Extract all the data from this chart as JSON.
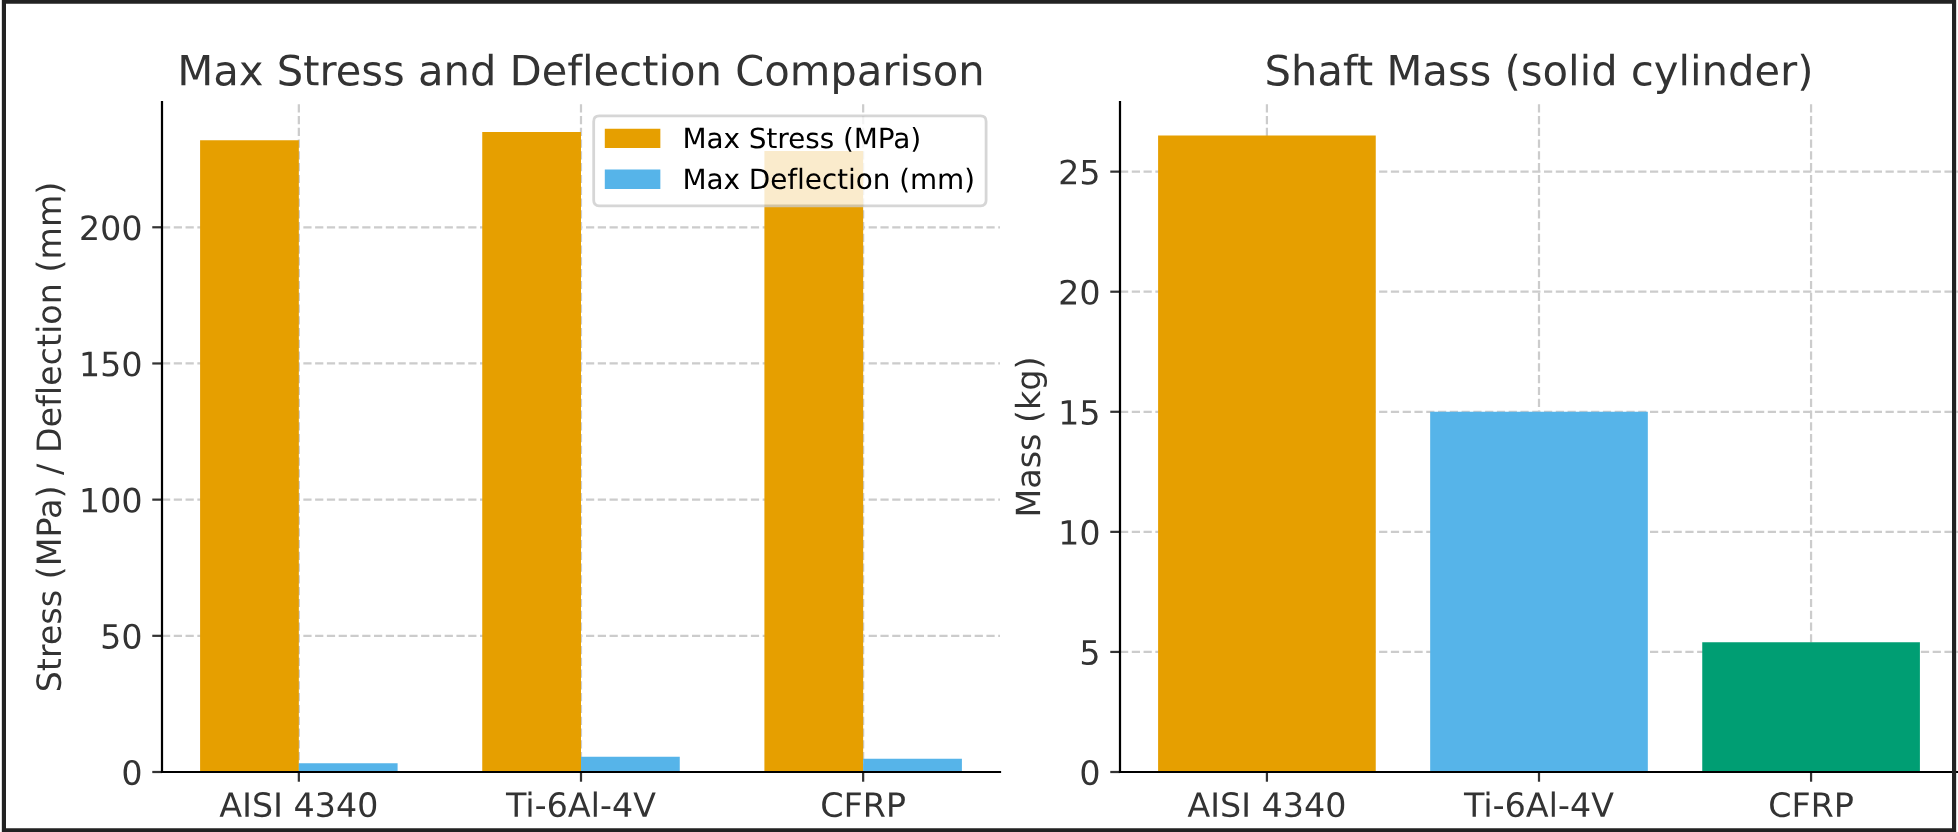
{
  "chart_data": [
    {
      "type": "bar",
      "title": "Max Stress and Deflection Comparison",
      "ylabel": "Stress (MPa) / Deflection (mm)",
      "categories": [
        "AISI 4340",
        "Ti-6Al-4V",
        "CFRP"
      ],
      "series": [
        {
          "name": "Max Stress (MPa)",
          "color": "#e69f00",
          "values": [
            232,
            235,
            228
          ]
        },
        {
          "name": "Max Deflection (mm)",
          "color": "#56b4e9",
          "values": [
            3.2,
            5.6,
            4.9
          ]
        }
      ],
      "ylim": [
        0,
        246
      ],
      "yticks": [
        0,
        50,
        100,
        150,
        200
      ],
      "grid": true,
      "legend": "top right"
    },
    {
      "type": "bar",
      "title": "Shaft Mass (solid cylinder)",
      "ylabel": "Mass (kg)",
      "categories": [
        "AISI 4340",
        "Ti-6Al-4V",
        "CFRP"
      ],
      "values": [
        26.5,
        15.0,
        5.4
      ],
      "colors": [
        "#e69f00",
        "#56b4e9",
        "#009e73"
      ],
      "ylim": [
        0,
        27.9
      ],
      "yticks": [
        0,
        5,
        10,
        15,
        20,
        25
      ],
      "grid": true
    }
  ]
}
